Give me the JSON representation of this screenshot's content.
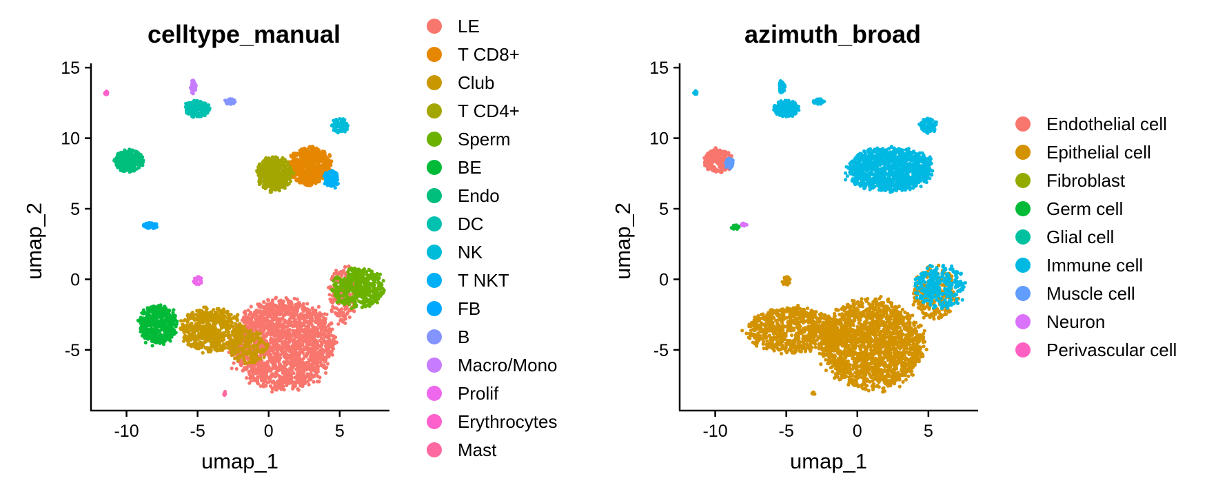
{
  "chart_data": [
    {
      "type": "scatter",
      "title": "celltype_manual",
      "xlabel": "umap_1",
      "ylabel": "umap_2",
      "xlim": [
        -12.5,
        8.5
      ],
      "ylim": [
        -9.3,
        15.3
      ],
      "xticks": [
        -10,
        -5,
        0,
        5
      ],
      "xtick_labels": [
        "-10",
        "-5",
        "0",
        "5"
      ],
      "yticks": [
        15,
        10,
        5,
        0,
        -5
      ],
      "ytick_labels": [
        "15",
        "10",
        "5",
        "0",
        "-5"
      ],
      "grid": false,
      "legend_position": "right",
      "legend": [
        {
          "label": "LE",
          "color": "#F8766D"
        },
        {
          "label": "T CD8+",
          "color": "#E58700"
        },
        {
          "label": "Club",
          "color": "#C99800"
        },
        {
          "label": "T CD4+",
          "color": "#A3A500"
        },
        {
          "label": "Sperm",
          "color": "#6BB100"
        },
        {
          "label": "BE",
          "color": "#00BA38"
        },
        {
          "label": "Endo",
          "color": "#00BF7D"
        },
        {
          "label": "DC",
          "color": "#00C0AF"
        },
        {
          "label": "NK",
          "color": "#00BCD8"
        },
        {
          "label": "T NKT",
          "color": "#00B0F6"
        },
        {
          "label": "FB",
          "color": "#00A9FF"
        },
        {
          "label": "B",
          "color": "#8494FF"
        },
        {
          "label": "Macro/Mono",
          "color": "#C77CFF"
        },
        {
          "label": "Prolif",
          "color": "#ED68ED"
        },
        {
          "label": "Erythrocytes",
          "color": "#FF61CC"
        },
        {
          "label": "Mast",
          "color": "#FF68A1"
        }
      ],
      "clusters": [
        {
          "label": "LE",
          "cx": 1.0,
          "cy": -4.6,
          "rx": 3.6,
          "ry": 3.1,
          "n": 1900
        },
        {
          "label": "LE",
          "cx": 5.2,
          "cy": -1.0,
          "rx": 1.0,
          "ry": 2.0,
          "n": 180
        },
        {
          "label": "Club",
          "cx": -4.0,
          "cy": -3.6,
          "rx": 2.2,
          "ry": 1.6,
          "n": 600
        },
        {
          "label": "Club",
          "cx": -1.5,
          "cy": -4.8,
          "rx": 1.4,
          "ry": 1.2,
          "n": 180
        },
        {
          "label": "BE",
          "cx": -7.8,
          "cy": -3.2,
          "rx": 1.3,
          "ry": 1.4,
          "n": 450
        },
        {
          "label": "Sperm",
          "cx": 6.3,
          "cy": -0.6,
          "rx": 1.8,
          "ry": 1.4,
          "n": 400
        },
        {
          "label": "T CD8+",
          "cx": 2.9,
          "cy": 8.0,
          "rx": 1.5,
          "ry": 1.3,
          "n": 700
        },
        {
          "label": "T CD4+",
          "cx": 0.4,
          "cy": 7.5,
          "rx": 1.2,
          "ry": 1.2,
          "n": 500
        },
        {
          "label": "T NKT",
          "cx": 4.4,
          "cy": 7.1,
          "rx": 0.5,
          "ry": 0.6,
          "n": 120
        },
        {
          "label": "Endo",
          "cx": -9.8,
          "cy": 8.4,
          "rx": 1.0,
          "ry": 0.8,
          "n": 280
        },
        {
          "label": "DC",
          "cx": -5.0,
          "cy": 12.1,
          "rx": 0.9,
          "ry": 0.6,
          "n": 180
        },
        {
          "label": "NK",
          "cx": 5.0,
          "cy": 10.9,
          "rx": 0.6,
          "ry": 0.5,
          "n": 90
        },
        {
          "label": "B",
          "cx": -2.7,
          "cy": 12.6,
          "rx": 0.4,
          "ry": 0.2,
          "n": 40
        },
        {
          "label": "Macro/Mono",
          "cx": -5.3,
          "cy": 13.6,
          "rx": 0.2,
          "ry": 0.5,
          "n": 40
        },
        {
          "label": "FB",
          "cx": -8.3,
          "cy": 3.8,
          "rx": 0.5,
          "ry": 0.2,
          "n": 40
        },
        {
          "label": "Prolif",
          "cx": -5.0,
          "cy": -0.1,
          "rx": 0.3,
          "ry": 0.3,
          "n": 25
        },
        {
          "label": "Erythrocytes",
          "cx": -11.4,
          "cy": 13.2,
          "rx": 0.15,
          "ry": 0.15,
          "n": 12
        },
        {
          "label": "Mast",
          "cx": -3.1,
          "cy": -8.1,
          "rx": 0.1,
          "ry": 0.15,
          "n": 8
        }
      ]
    },
    {
      "type": "scatter",
      "title": "azimuth_broad",
      "xlabel": "umap_1",
      "ylabel": "umap_2",
      "xlim": [
        -12.5,
        8.5
      ],
      "ylim": [
        -9.3,
        15.3
      ],
      "xticks": [
        -10,
        -5,
        0,
        5
      ],
      "xtick_labels": [
        "-10",
        "-5",
        "0",
        "5"
      ],
      "yticks": [
        15,
        10,
        5,
        0,
        -5
      ],
      "ytick_labels": [
        "15",
        "10",
        "5",
        "0",
        "-5"
      ],
      "grid": false,
      "legend_position": "right",
      "legend": [
        {
          "label": "Endothelial cell",
          "color": "#F8766D"
        },
        {
          "label": "Epithelial cell",
          "color": "#D39200"
        },
        {
          "label": "Fibroblast",
          "color": "#93AA00"
        },
        {
          "label": "Germ cell",
          "color": "#00BA38"
        },
        {
          "label": "Glial cell",
          "color": "#00C19F"
        },
        {
          "label": "Immune cell",
          "color": "#00B9E3"
        },
        {
          "label": "Muscle cell",
          "color": "#619CFF"
        },
        {
          "label": "Neuron",
          "color": "#DB72FB"
        },
        {
          "label": "Perivascular cell",
          "color": "#FF61C3"
        }
      ],
      "clusters": [
        {
          "label": "Epithelial cell",
          "cx": 1.0,
          "cy": -4.6,
          "rx": 3.6,
          "ry": 3.1,
          "n": 1900
        },
        {
          "label": "Epithelial cell",
          "cx": -4.5,
          "cy": -3.6,
          "rx": 3.2,
          "ry": 1.6,
          "n": 800
        },
        {
          "label": "Epithelial cell",
          "cx": 5.5,
          "cy": -1.0,
          "rx": 1.6,
          "ry": 1.8,
          "n": 250
        },
        {
          "label": "Immune cell",
          "cx": 5.8,
          "cy": -0.5,
          "rx": 1.8,
          "ry": 1.6,
          "n": 280
        },
        {
          "label": "Immune cell",
          "cx": 2.3,
          "cy": 7.8,
          "rx": 2.9,
          "ry": 1.5,
          "n": 1200
        },
        {
          "label": "Immune cell",
          "cx": -5.0,
          "cy": 12.1,
          "rx": 0.9,
          "ry": 0.6,
          "n": 180
        },
        {
          "label": "Immune cell",
          "cx": -2.7,
          "cy": 12.6,
          "rx": 0.4,
          "ry": 0.2,
          "n": 40
        },
        {
          "label": "Immune cell",
          "cx": -5.3,
          "cy": 13.6,
          "rx": 0.2,
          "ry": 0.5,
          "n": 40
        },
        {
          "label": "Immune cell",
          "cx": 5.0,
          "cy": 10.9,
          "rx": 0.6,
          "ry": 0.5,
          "n": 90
        },
        {
          "label": "Immune cell",
          "cx": -11.4,
          "cy": 13.2,
          "rx": 0.15,
          "ry": 0.15,
          "n": 12
        },
        {
          "label": "Endothelial cell",
          "cx": -9.8,
          "cy": 8.4,
          "rx": 1.0,
          "ry": 0.8,
          "n": 280
        },
        {
          "label": "Muscle cell",
          "cx": -9.0,
          "cy": 8.2,
          "rx": 0.3,
          "ry": 0.4,
          "n": 30
        },
        {
          "label": "Germ cell",
          "cx": -8.6,
          "cy": 3.7,
          "rx": 0.3,
          "ry": 0.15,
          "n": 20
        },
        {
          "label": "Neuron",
          "cx": -8.0,
          "cy": 3.9,
          "rx": 0.2,
          "ry": 0.15,
          "n": 12
        },
        {
          "label": "Epithelial cell",
          "cx": -5.0,
          "cy": -0.1,
          "rx": 0.3,
          "ry": 0.3,
          "n": 25
        },
        {
          "label": "Epithelial cell",
          "cx": -3.1,
          "cy": -8.1,
          "rx": 0.1,
          "ry": 0.15,
          "n": 8
        }
      ]
    }
  ]
}
